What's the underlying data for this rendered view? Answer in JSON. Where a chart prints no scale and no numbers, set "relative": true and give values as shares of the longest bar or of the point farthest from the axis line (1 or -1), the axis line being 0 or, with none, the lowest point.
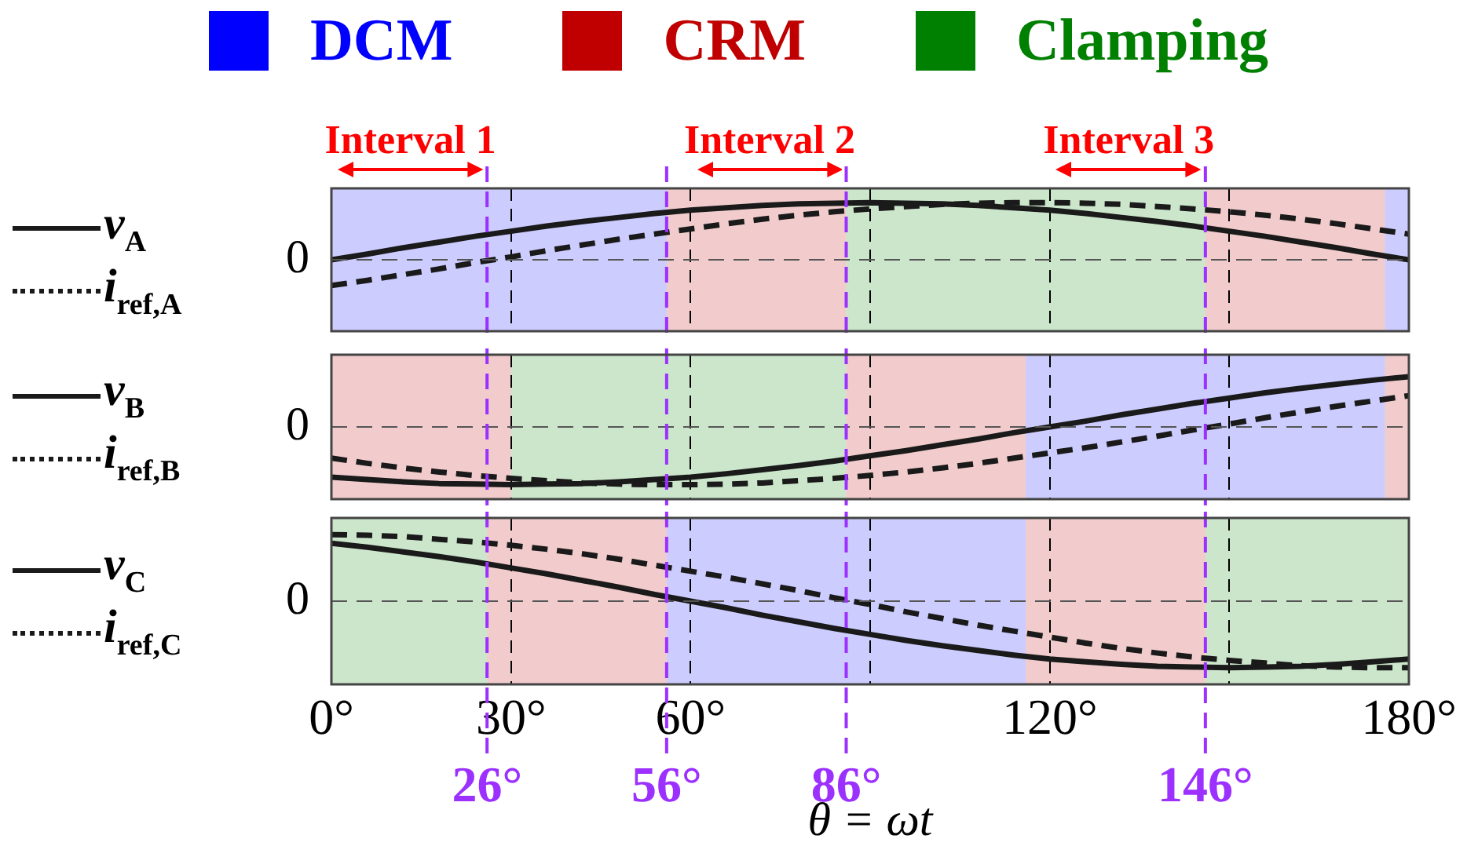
{
  "chart_data": [
    {
      "type": "line",
      "relative": true,
      "legend": "left",
      "grid": "x",
      "tick_labels": false,
      "marker": "none",
      "x": [
        0,
        6,
        12,
        18,
        24,
        30,
        36,
        42,
        48,
        54,
        60,
        66,
        72,
        78,
        84,
        90,
        96,
        102,
        108,
        114,
        120,
        126,
        132,
        138,
        144,
        150,
        156,
        162,
        168,
        174,
        180
      ],
      "xlim": [
        0,
        180
      ],
      "xticks": [
        0,
        30,
        60,
        90,
        120,
        150,
        180
      ],
      "series": [
        {
          "name": "v$_{A}$",
          "color": "#1a1a1a",
          "line_style": "solid",
          "values": [
            0,
            0.1,
            0.21,
            0.31,
            0.41,
            0.5,
            0.59,
            0.67,
            0.74,
            0.81,
            0.87,
            0.91,
            0.95,
            0.98,
            0.99,
            1.0,
            0.99,
            0.98,
            0.95,
            0.91,
            0.87,
            0.81,
            0.74,
            0.67,
            0.59,
            0.5,
            0.41,
            0.31,
            0.21,
            0.1,
            0
          ]
        },
        {
          "name": "i$_{ref,A}$",
          "color": "#1a1a1a",
          "line_style": "dashed",
          "values": [
            -0.45,
            -0.36,
            -0.26,
            -0.16,
            -0.05,
            0.05,
            0.16,
            0.26,
            0.36,
            0.45,
            0.54,
            0.63,
            0.71,
            0.78,
            0.84,
            0.89,
            0.93,
            0.97,
            0.99,
            1.0,
            1.0,
            0.99,
            0.97,
            0.93,
            0.89,
            0.84,
            0.78,
            0.71,
            0.63,
            0.54,
            0.45
          ]
        }
      ],
      "bands": [
        {
          "axis": "x",
          "from": 0,
          "to": 56,
          "label": "DCM",
          "color": "#0000ff"
        },
        {
          "axis": "x",
          "from": 56,
          "to": 86,
          "label": "CRM",
          "color": "#c00000"
        },
        {
          "axis": "x",
          "from": 86,
          "to": 146,
          "label": "Clamping",
          "color": "#008000"
        },
        {
          "axis": "x",
          "from": 146,
          "to": 176,
          "color": "#c00000"
        },
        {
          "axis": "x",
          "from": 176,
          "to": 180,
          "color": "#0000ff"
        }
      ],
      "ref_lines": [
        {
          "axis": "y",
          "value": 0,
          "label": "0",
          "color": "#555555",
          "line_style": "dashed"
        },
        {
          "axis": "x",
          "value": 26,
          "color": "#9b30ff",
          "line_style": "dashed"
        },
        {
          "axis": "x",
          "value": 56,
          "color": "#9b30ff",
          "line_style": "dashed"
        },
        {
          "axis": "x",
          "value": 86,
          "color": "#9b30ff",
          "line_style": "dashed"
        },
        {
          "axis": "x",
          "value": 146,
          "color": "#9b30ff",
          "line_style": "dashed"
        }
      ],
      "annotations": [
        "Interval 1",
        "Interval 2",
        "Interval 3"
      ]
    },
    {
      "type": "line",
      "relative": true,
      "legend": "left",
      "grid": "x",
      "tick_labels": false,
      "marker": "none",
      "x": [
        0,
        6,
        12,
        18,
        24,
        30,
        36,
        42,
        48,
        54,
        60,
        66,
        72,
        78,
        84,
        90,
        96,
        102,
        108,
        114,
        120,
        126,
        132,
        138,
        144,
        150,
        156,
        162,
        168,
        174,
        180
      ],
      "xlim": [
        0,
        180
      ],
      "xticks": [
        0,
        30,
        60,
        90,
        120,
        150,
        180
      ],
      "series": [
        {
          "name": "v$_{B}$",
          "color": "#1a1a1a",
          "line_style": "solid",
          "values": [
            -0.87,
            -0.91,
            -0.95,
            -0.98,
            -0.99,
            -1.0,
            -0.99,
            -0.98,
            -0.95,
            -0.91,
            -0.87,
            -0.81,
            -0.74,
            -0.67,
            -0.59,
            -0.5,
            -0.41,
            -0.31,
            -0.21,
            -0.1,
            0,
            0.1,
            0.21,
            0.31,
            0.41,
            0.5,
            0.59,
            0.67,
            0.74,
            0.81,
            0.87
          ]
        },
        {
          "name": "i$_{ref,B}$",
          "color": "#1a1a1a",
          "line_style": "dashed",
          "values": [
            -0.54,
            -0.63,
            -0.71,
            -0.78,
            -0.84,
            -0.89,
            -0.93,
            -0.97,
            -0.99,
            -1.0,
            -1.0,
            -0.99,
            -0.97,
            -0.93,
            -0.89,
            -0.84,
            -0.78,
            -0.71,
            -0.63,
            -0.54,
            -0.45,
            -0.36,
            -0.26,
            -0.16,
            -0.05,
            0.05,
            0.16,
            0.26,
            0.36,
            0.45,
            0.54
          ]
        }
      ],
      "bands": [
        {
          "axis": "x",
          "from": 0,
          "to": 30,
          "color": "#c00000"
        },
        {
          "axis": "x",
          "from": 30,
          "to": 86,
          "color": "#008000"
        },
        {
          "axis": "x",
          "from": 86,
          "to": 116,
          "color": "#c00000"
        },
        {
          "axis": "x",
          "from": 116,
          "to": 176,
          "color": "#0000ff"
        },
        {
          "axis": "x",
          "from": 176,
          "to": 180,
          "color": "#c00000"
        }
      ],
      "ref_lines": [
        {
          "axis": "y",
          "value": 0,
          "label": "0",
          "color": "#555555",
          "line_style": "dashed"
        },
        {
          "axis": "x",
          "value": 26,
          "color": "#9b30ff",
          "line_style": "dashed"
        },
        {
          "axis": "x",
          "value": 56,
          "color": "#9b30ff",
          "line_style": "dashed"
        },
        {
          "axis": "x",
          "value": 86,
          "color": "#9b30ff",
          "line_style": "dashed"
        },
        {
          "axis": "x",
          "value": 146,
          "color": "#9b30ff",
          "line_style": "dashed"
        }
      ]
    },
    {
      "type": "line",
      "relative": true,
      "legend": "left",
      "grid": "x",
      "tick_labels": "x",
      "marker": "none",
      "xlabel": "θ = ωt",
      "x": [
        0,
        6,
        12,
        18,
        24,
        30,
        36,
        42,
        48,
        54,
        60,
        66,
        72,
        78,
        84,
        90,
        96,
        102,
        108,
        114,
        120,
        126,
        132,
        138,
        144,
        150,
        156,
        162,
        168,
        174,
        180
      ],
      "xlim": [
        0,
        180
      ],
      "xticks": [
        {
          "value": 0,
          "label": "0°"
        },
        {
          "value": 30,
          "label": "30°"
        },
        {
          "value": 60,
          "label": "60°"
        },
        {
          "value": 90,
          "label": null
        },
        {
          "value": 120,
          "label": "120°"
        },
        {
          "value": 150,
          "label": null
        },
        {
          "value": 180,
          "label": "180°"
        }
      ],
      "series": [
        {
          "name": "v$_{C}$",
          "color": "#1a1a1a",
          "line_style": "solid",
          "values": [
            0.87,
            0.81,
            0.74,
            0.67,
            0.59,
            0.5,
            0.41,
            0.31,
            0.21,
            0.1,
            0,
            -0.1,
            -0.21,
            -0.31,
            -0.41,
            -0.5,
            -0.59,
            -0.67,
            -0.74,
            -0.81,
            -0.87,
            -0.91,
            -0.95,
            -0.98,
            -0.99,
            -1.0,
            -0.99,
            -0.98,
            -0.95,
            -0.91,
            -0.87
          ]
        },
        {
          "name": "i$_{ref,C}$",
          "color": "#1a1a1a",
          "line_style": "dashed",
          "values": [
            1.0,
            0.99,
            0.97,
            0.93,
            0.89,
            0.84,
            0.78,
            0.71,
            0.63,
            0.54,
            0.45,
            0.36,
            0.26,
            0.16,
            0.05,
            -0.05,
            -0.16,
            -0.26,
            -0.36,
            -0.45,
            -0.54,
            -0.63,
            -0.71,
            -0.78,
            -0.84,
            -0.89,
            -0.93,
            -0.97,
            -0.99,
            -1.0,
            -1.0
          ]
        }
      ],
      "bands": [
        {
          "axis": "x",
          "from": 0,
          "to": 26,
          "color": "#008000"
        },
        {
          "axis": "x",
          "from": 26,
          "to": 56,
          "color": "#c00000"
        },
        {
          "axis": "x",
          "from": 56,
          "to": 116,
          "color": "#0000ff"
        },
        {
          "axis": "x",
          "from": 116,
          "to": 146,
          "color": "#c00000"
        },
        {
          "axis": "x",
          "from": 146,
          "to": 180,
          "color": "#008000"
        }
      ],
      "ref_lines": [
        {
          "axis": "y",
          "value": 0,
          "label": "0",
          "color": "#555555",
          "line_style": "dashed"
        },
        {
          "axis": "x",
          "value": 26,
          "label": "26°",
          "color": "#9b30ff",
          "line_style": "dashed"
        },
        {
          "axis": "x",
          "value": 56,
          "label": "56°",
          "color": "#9b30ff",
          "line_style": "dashed"
        },
        {
          "axis": "x",
          "value": 86,
          "label": "86°",
          "color": "#9b30ff",
          "line_style": "dashed"
        },
        {
          "axis": "x",
          "value": 146,
          "label": "146°",
          "color": "#9b30ff",
          "line_style": "dashed"
        }
      ]
    }
  ]
}
